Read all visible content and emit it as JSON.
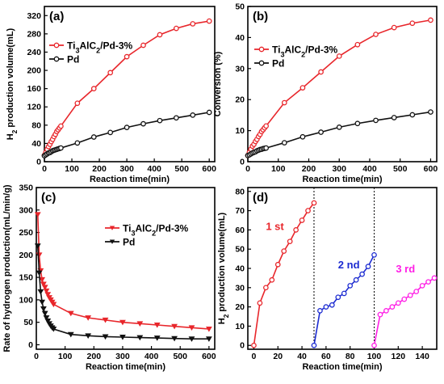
{
  "chart_data": [
    {
      "type": "line",
      "panel_label": "(a)",
      "xlabel": "Reaction time(min)",
      "ylabel_parts": [
        "H",
        "2",
        " production volume(mL)"
      ],
      "xlim": [
        0,
        620
      ],
      "ylim": [
        0,
        340
      ],
      "xticks": [
        "0",
        "100",
        "200",
        "300",
        "400",
        "500",
        "600"
      ],
      "yticks": [
        "0",
        "40",
        "80",
        "120",
        "160",
        "200",
        "240",
        "280",
        "320"
      ],
      "legend_placement": "top-left",
      "series": [
        {
          "name_parts": [
            "Ti",
            "3",
            "AlC",
            "2",
            "/Pd-3%"
          ],
          "color": "#e8262b",
          "marker": "open-circle",
          "x": [
            0,
            5,
            10,
            15,
            20,
            25,
            30,
            35,
            40,
            45,
            50,
            55,
            60,
            120,
            180,
            240,
            300,
            360,
            420,
            480,
            540,
            600
          ],
          "y": [
            14,
            20,
            27,
            33,
            38,
            44,
            49,
            55,
            60,
            66,
            70,
            74,
            78,
            128,
            160,
            195,
            230,
            255,
            278,
            292,
            302,
            308
          ]
        },
        {
          "name_parts": [
            "Pd"
          ],
          "color": "#111111",
          "marker": "open-circle",
          "x": [
            0,
            5,
            10,
            15,
            20,
            25,
            30,
            35,
            40,
            45,
            50,
            55,
            60,
            120,
            180,
            240,
            300,
            360,
            420,
            480,
            540,
            600
          ],
          "y": [
            13,
            15,
            17,
            19,
            20,
            22,
            24,
            25,
            26,
            27,
            28,
            29,
            30,
            41,
            54,
            64,
            75,
            83,
            90,
            96,
            102,
            108
          ]
        }
      ]
    },
    {
      "type": "line",
      "panel_label": "(b)",
      "xlabel": "Reaction time(min)",
      "ylabel": "Conversion (%)",
      "xlim": [
        0,
        620
      ],
      "ylim": [
        0,
        50
      ],
      "xticks": [
        "0",
        "100",
        "200",
        "300",
        "400",
        "500",
        "600"
      ],
      "yticks": [
        "0",
        "10",
        "20",
        "30",
        "40",
        "50"
      ],
      "legend_placement": "top-left",
      "series": [
        {
          "name_parts": [
            "Ti",
            "3",
            "AlC",
            "2",
            "/Pd-3%"
          ],
          "color": "#e8262b",
          "marker": "open-circle",
          "x": [
            0,
            5,
            10,
            15,
            20,
            25,
            30,
            35,
            40,
            45,
            50,
            55,
            60,
            120,
            180,
            240,
            300,
            360,
            420,
            480,
            540,
            600
          ],
          "y": [
            2,
            3,
            4,
            5,
            5.6,
            6.5,
            7.2,
            8.1,
            8.8,
            9.7,
            10.3,
            10.9,
            11.5,
            19,
            23.8,
            28.9,
            34,
            37.7,
            41,
            43.2,
            44.6,
            45.6
          ]
        },
        {
          "name_parts": [
            "Pd"
          ],
          "color": "#111111",
          "marker": "open-circle",
          "x": [
            0,
            5,
            10,
            15,
            20,
            25,
            30,
            35,
            40,
            45,
            50,
            55,
            60,
            120,
            180,
            240,
            300,
            360,
            420,
            480,
            540,
            600
          ],
          "y": [
            2,
            2.2,
            2.5,
            2.8,
            3,
            3.2,
            3.5,
            3.7,
            3.9,
            4,
            4.2,
            4.3,
            4.4,
            6.1,
            8,
            9.5,
            11.1,
            12.3,
            13.3,
            14.2,
            15.1,
            16
          ]
        }
      ]
    },
    {
      "type": "line",
      "panel_label": "(c)",
      "xlabel": "Reaction time(min)",
      "ylabel": "Rate of hydrogen production(mL/min/g)",
      "xlim": [
        0,
        620
      ],
      "ylim": [
        -10,
        350
      ],
      "xticks": [
        "0",
        "100",
        "200",
        "300",
        "400",
        "500",
        "600"
      ],
      "yticks": [
        "0",
        "50",
        "100",
        "150",
        "200",
        "250",
        "300",
        "350"
      ],
      "legend_placement": "top-right",
      "series": [
        {
          "name_parts": [
            "Ti",
            "3",
            "AlC",
            "2",
            "/Pd-3%"
          ],
          "color": "#e8262b",
          "marker": "triangle",
          "x": [
            5,
            10,
            15,
            20,
            25,
            30,
            35,
            40,
            45,
            50,
            55,
            60,
            120,
            180,
            240,
            300,
            360,
            420,
            480,
            540,
            600
          ],
          "y": [
            290,
            200,
            165,
            145,
            135,
            128,
            120,
            112,
            105,
            100,
            95,
            90,
            70,
            60,
            55,
            50,
            47,
            44,
            41,
            38,
            35
          ]
        },
        {
          "name_parts": [
            "Pd"
          ],
          "color": "#111111",
          "marker": "triangle",
          "x": [
            5,
            10,
            15,
            20,
            25,
            30,
            35,
            40,
            45,
            50,
            55,
            60,
            120,
            180,
            240,
            300,
            360,
            420,
            480,
            540,
            600
          ],
          "y": [
            220,
            160,
            118,
            95,
            80,
            70,
            60,
            53,
            47,
            42,
            38,
            35,
            23,
            20,
            18,
            17,
            16,
            15,
            14,
            13,
            13
          ]
        }
      ]
    },
    {
      "type": "line",
      "panel_label": "(d)",
      "xlabel": "Reaction time(min)",
      "ylabel_parts": [
        "H",
        "2",
        " production volume(mL)"
      ],
      "xlim": [
        -5,
        152
      ],
      "ylim": [
        -2,
        82
      ],
      "xticks": [
        "0",
        "20",
        "40",
        "60",
        "80",
        "100",
        "120",
        "140"
      ],
      "yticks": [
        "0",
        "10",
        "20",
        "30",
        "40",
        "50",
        "60",
        "70",
        "80"
      ],
      "divider_x": [
        50,
        100
      ],
      "series": [
        {
          "name": "1 st",
          "color": "#e8262b",
          "marker": "open-circle",
          "x": [
            0,
            5,
            10,
            15,
            20,
            25,
            30,
            35,
            40,
            45,
            50
          ],
          "y": [
            0,
            22,
            30,
            34,
            42,
            49,
            54,
            60,
            65,
            70,
            74
          ]
        },
        {
          "name": "2 nd",
          "color": "#1c2bd1",
          "marker": "open-circle",
          "x": [
            50,
            55,
            60,
            65,
            70,
            75,
            80,
            85,
            90,
            95,
            100
          ],
          "y": [
            0,
            18,
            20,
            21,
            25,
            27,
            31,
            34,
            37,
            41,
            47
          ]
        },
        {
          "name": "3 rd",
          "color": "#ff1ee6",
          "marker": "open-circle",
          "x": [
            100,
            105,
            110,
            115,
            120,
            125,
            130,
            135,
            140,
            145,
            150
          ],
          "y": [
            0,
            16,
            18,
            20,
            22,
            24,
            26,
            28,
            31,
            33,
            35
          ]
        }
      ]
    }
  ]
}
